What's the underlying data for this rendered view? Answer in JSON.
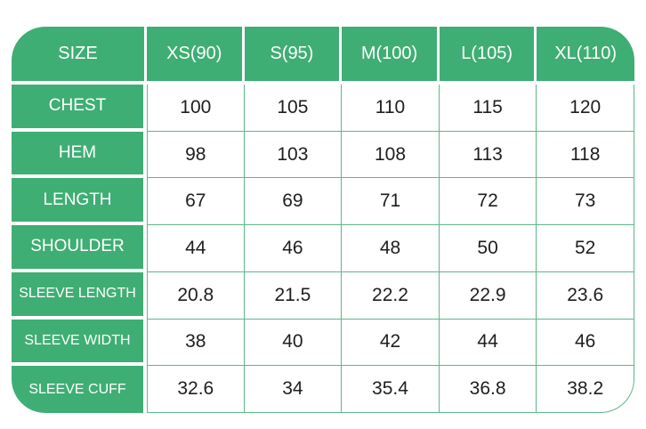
{
  "table": {
    "header": [
      "SIZE",
      "XS(90)",
      "S(95)",
      "M(100)",
      "L(105)",
      "XL(110)"
    ],
    "rows": [
      {
        "label": "CHEST",
        "values": [
          "100",
          "105",
          "110",
          "115",
          "120"
        ]
      },
      {
        "label": "HEM",
        "values": [
          "98",
          "103",
          "108",
          "113",
          "118"
        ]
      },
      {
        "label": "LENGTH",
        "values": [
          "67",
          "69",
          "71",
          "72",
          "73"
        ]
      },
      {
        "label": "SHOULDER",
        "values": [
          "44",
          "46",
          "48",
          "50",
          "52"
        ]
      },
      {
        "label": "SLEEVE LENGTH",
        "values": [
          "20.8",
          "21.5",
          "22.2",
          "22.9",
          "23.6"
        ]
      },
      {
        "label": "SLEEVE WIDTH",
        "values": [
          "38",
          "40",
          "42",
          "44",
          "46"
        ]
      },
      {
        "label": "SLEEVE CUFF",
        "values": [
          "32.6",
          "34",
          "35.4",
          "36.8",
          "38.2"
        ]
      }
    ],
    "colors": {
      "green_fill": "#3FAE74",
      "grid_line_green": "#5CB88A",
      "text_on_green": "#ffffff",
      "text_on_white": "#1e1e1e"
    }
  }
}
